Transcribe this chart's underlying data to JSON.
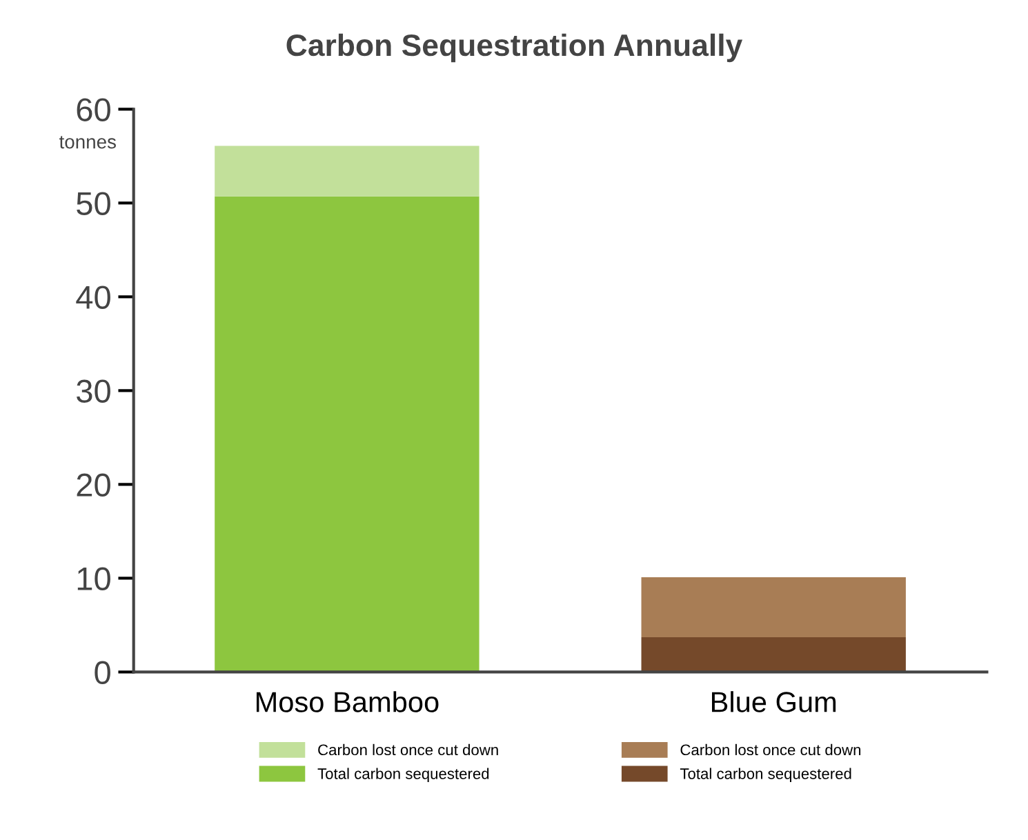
{
  "chart_data": {
    "type": "bar",
    "title": "Carbon Sequestration Annually",
    "ylabel": "tonnes",
    "categories": [
      "Moso Bamboo",
      "Blue Gum"
    ],
    "stacked": true,
    "series": [
      {
        "name": "Total carbon sequestered",
        "color": "#8dc63f",
        "values": [
          50.7,
          null
        ]
      },
      {
        "name": "Total carbon sequestered",
        "color": "#75492a",
        "values": [
          null,
          3.7
        ]
      },
      {
        "name": "Carbon lost once cut down",
        "color": "#c2e09a",
        "values": [
          5.4,
          null
        ]
      },
      {
        "name": "Carbon lost once cut down",
        "color": "#a87d55",
        "values": [
          null,
          6.4
        ]
      }
    ],
    "ylim": [
      0,
      60
    ],
    "yticks": [
      0,
      10,
      20,
      30,
      40,
      50,
      60
    ],
    "grid": false,
    "legend": "bottom"
  }
}
